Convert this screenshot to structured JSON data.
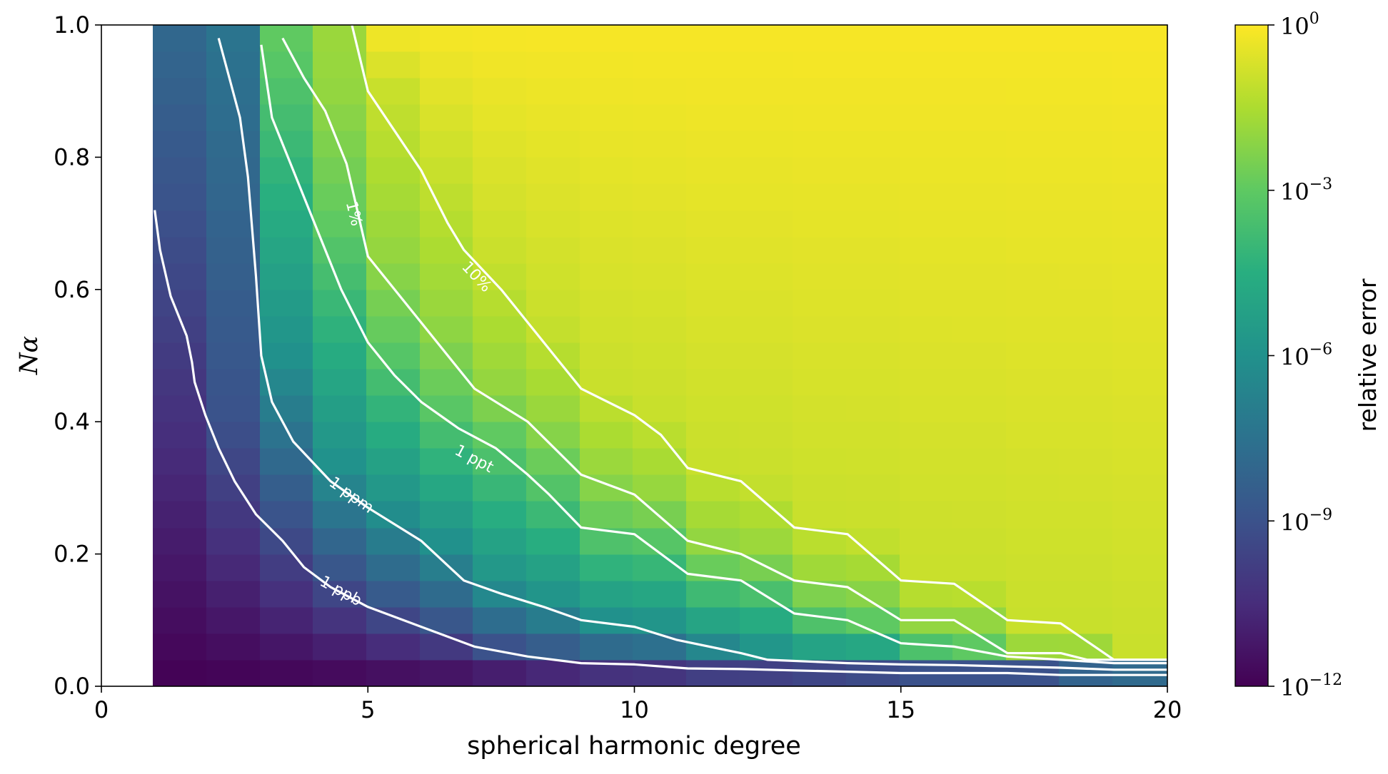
{
  "chart_data": {
    "type": "heatmap",
    "xlabel": "spherical harmonic degree",
    "ylabel": "Nα",
    "xlim": [
      0,
      20
    ],
    "ylim": [
      0.0,
      1.0
    ],
    "x_ticks": [
      "0",
      "5",
      "10",
      "15",
      "20"
    ],
    "y_ticks": [
      "0.0",
      "0.2",
      "0.4",
      "0.6",
      "0.8",
      "1.0"
    ],
    "colormap": "viridis",
    "color_scale": "log",
    "colorbar": {
      "label": "relative error",
      "range_log10": [
        -12,
        0
      ],
      "ticks": [
        {
          "base": "10",
          "exp": "0"
        },
        {
          "base": "10",
          "exp": "−3"
        },
        {
          "base": "10",
          "exp": "−6"
        },
        {
          "base": "10",
          "exp": "−9"
        },
        {
          "base": "10",
          "exp": "−12"
        }
      ]
    },
    "grid": {
      "degrees": [
        1,
        2,
        3,
        4,
        5,
        6,
        7,
        8,
        9,
        10,
        11,
        12,
        13,
        14,
        15,
        16,
        17,
        18,
        19,
        20
      ],
      "na_rows": 25
    },
    "contours": [
      {
        "label": "1 ppb",
        "log10_level": -9,
        "points": [
          [
            1.0,
            0.72
          ],
          [
            1.1,
            0.66
          ],
          [
            1.3,
            0.59
          ],
          [
            1.6,
            0.53
          ],
          [
            1.7,
            0.49
          ],
          [
            1.75,
            0.46
          ],
          [
            1.95,
            0.41
          ],
          [
            2.2,
            0.36
          ],
          [
            2.5,
            0.31
          ],
          [
            2.9,
            0.26
          ],
          [
            3.4,
            0.22
          ],
          [
            3.8,
            0.18
          ],
          [
            4.3,
            0.15
          ],
          [
            5.0,
            0.12
          ],
          [
            6.0,
            0.09
          ],
          [
            7.0,
            0.06
          ],
          [
            8.0,
            0.045
          ],
          [
            9.0,
            0.035
          ],
          [
            10.0,
            0.033
          ],
          [
            11.0,
            0.027
          ],
          [
            12.0,
            0.026
          ],
          [
            13.0,
            0.024
          ],
          [
            14.0,
            0.022
          ],
          [
            15.0,
            0.02
          ],
          [
            16.0,
            0.02
          ],
          [
            17.0,
            0.02
          ],
          [
            18.0,
            0.017
          ],
          [
            19.0,
            0.017
          ],
          [
            20.0,
            0.017
          ]
        ]
      },
      {
        "label": "1 ppm",
        "log10_level": -6,
        "points": [
          [
            2.2,
            0.98
          ],
          [
            2.4,
            0.92
          ],
          [
            2.6,
            0.86
          ],
          [
            2.75,
            0.77
          ],
          [
            2.9,
            0.62
          ],
          [
            3.0,
            0.5
          ],
          [
            3.2,
            0.43
          ],
          [
            3.6,
            0.37
          ],
          [
            4.3,
            0.31
          ],
          [
            5.0,
            0.27
          ],
          [
            6.0,
            0.22
          ],
          [
            6.8,
            0.16
          ],
          [
            7.5,
            0.14
          ],
          [
            8.3,
            0.12
          ],
          [
            9.0,
            0.1
          ],
          [
            10.0,
            0.09
          ],
          [
            10.8,
            0.07
          ],
          [
            12.0,
            0.05
          ],
          [
            12.5,
            0.04
          ],
          [
            14.0,
            0.035
          ],
          [
            15.0,
            0.033
          ],
          [
            16.0,
            0.032
          ],
          [
            17.0,
            0.03
          ],
          [
            18.0,
            0.028
          ],
          [
            19.0,
            0.025
          ],
          [
            20.0,
            0.025
          ]
        ]
      },
      {
        "label": "1 ppt",
        "log10_level": -3,
        "points": [
          [
            3.0,
            0.97
          ],
          [
            3.2,
            0.86
          ],
          [
            3.5,
            0.8
          ],
          [
            4.0,
            0.7
          ],
          [
            4.5,
            0.6
          ],
          [
            5.0,
            0.52
          ],
          [
            5.5,
            0.47
          ],
          [
            6.0,
            0.43
          ],
          [
            6.7,
            0.39
          ],
          [
            7.4,
            0.36
          ],
          [
            8.0,
            0.32
          ],
          [
            8.4,
            0.29
          ],
          [
            9.0,
            0.24
          ],
          [
            10.0,
            0.23
          ],
          [
            11.0,
            0.17
          ],
          [
            12.0,
            0.16
          ],
          [
            13.0,
            0.11
          ],
          [
            14.0,
            0.1
          ],
          [
            15.0,
            0.065
          ],
          [
            16.0,
            0.06
          ],
          [
            17.0,
            0.045
          ],
          [
            18.0,
            0.04
          ],
          [
            19.0,
            0.035
          ],
          [
            20.0,
            0.035
          ]
        ]
      },
      {
        "label": "1%",
        "log10_level": -2,
        "points": [
          [
            3.4,
            0.98
          ],
          [
            3.8,
            0.92
          ],
          [
            4.2,
            0.87
          ],
          [
            4.6,
            0.79
          ],
          [
            5.0,
            0.65
          ],
          [
            5.5,
            0.6
          ],
          [
            6.0,
            0.55
          ],
          [
            6.5,
            0.5
          ],
          [
            7.0,
            0.45
          ],
          [
            8.0,
            0.4
          ],
          [
            9.0,
            0.32
          ],
          [
            10.0,
            0.29
          ],
          [
            11.0,
            0.22
          ],
          [
            12.0,
            0.2
          ],
          [
            13.0,
            0.16
          ],
          [
            14.0,
            0.15
          ],
          [
            15.0,
            0.1
          ],
          [
            16.0,
            0.1
          ],
          [
            17.0,
            0.05
          ],
          [
            18.0,
            0.05
          ],
          [
            18.5,
            0.04
          ],
          [
            20.0,
            0.04
          ]
        ]
      },
      {
        "label": "10%",
        "log10_level": -1,
        "points": [
          [
            4.7,
            1.0
          ],
          [
            5.0,
            0.9
          ],
          [
            5.5,
            0.84
          ],
          [
            6.0,
            0.78
          ],
          [
            6.5,
            0.7
          ],
          [
            6.8,
            0.66
          ],
          [
            7.5,
            0.6
          ],
          [
            8.0,
            0.55
          ],
          [
            8.5,
            0.5
          ],
          [
            9.0,
            0.45
          ],
          [
            10.0,
            0.41
          ],
          [
            10.5,
            0.38
          ],
          [
            11.0,
            0.33
          ],
          [
            12.0,
            0.31
          ],
          [
            13.0,
            0.24
          ],
          [
            14.0,
            0.23
          ],
          [
            15.0,
            0.16
          ],
          [
            16.0,
            0.155
          ],
          [
            17.0,
            0.1
          ],
          [
            18.0,
            0.095
          ],
          [
            19.0,
            0.04
          ],
          [
            20.0,
            0.04
          ]
        ]
      }
    ]
  }
}
